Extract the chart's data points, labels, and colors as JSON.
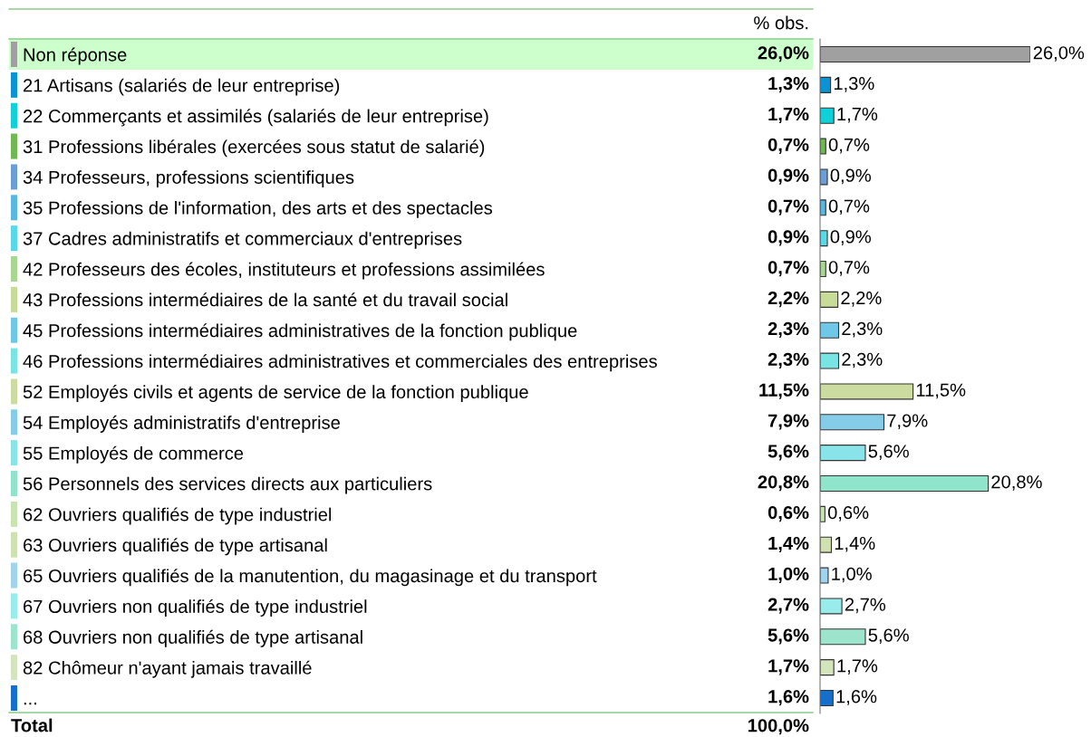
{
  "chart_data": {
    "type": "bar",
    "orientation": "horizontal",
    "data_labels": true,
    "categories": [
      "Non réponse",
      "21 Artisans (salariés de leur entreprise)",
      "22 Commerçants et assimilés (salariés de leur entreprise)",
      "31 Professions libérales (exercées sous statut de salarié)",
      "34 Professeurs, professions scientifiques",
      "35 Professions de l'information, des arts et des spectacles",
      "37 Cadres administratifs et commerciaux d'entreprises",
      "42 Professeurs des écoles, instituteurs et professions assimilées",
      "43 Professions intermédiaires de la santé et du travail social",
      "45 Professions intermédiaires administratives de la fonction publique",
      "46 Professions intermédiaires administratives et commerciales des entreprises",
      "52 Employés civils et agents de service de la fonction publique",
      "54 Employés administratifs d'entreprise",
      "55 Employés de commerce",
      "56 Personnels des services directs aux particuliers",
      "62 Ouvriers qualifiés de type industriel",
      "63 Ouvriers qualifiés de type artisanal",
      "65 Ouvriers qualifiés de la manutention, du magasinage et du transport",
      "67 Ouvriers non qualifiés de type industriel",
      "68 Ouvriers non qualifiés de type artisanal",
      "82 Chômeur n'ayant jamais travaillé",
      "..."
    ],
    "values": [
      26.0,
      1.3,
      1.7,
      0.7,
      0.9,
      0.7,
      0.9,
      0.7,
      2.2,
      2.3,
      2.3,
      11.5,
      7.9,
      5.6,
      20.8,
      0.6,
      1.4,
      1.0,
      2.7,
      5.6,
      1.7,
      1.6
    ],
    "value_labels": [
      "26,0%",
      "1,3%",
      "1,7%",
      "0,7%",
      "0,9%",
      "0,7%",
      "0,9%",
      "0,7%",
      "2,2%",
      "2,3%",
      "2,3%",
      "11,5%",
      "7,9%",
      "5,6%",
      "20,8%",
      "0,6%",
      "1,4%",
      "1,0%",
      "2,7%",
      "5,6%",
      "1,7%",
      "1,6%"
    ],
    "colors": [
      "#a0a0a0",
      "#0a94d6",
      "#10d0d8",
      "#70b850",
      "#6a9ed6",
      "#58b8e0",
      "#58d8e8",
      "#a8d890",
      "#c8dc98",
      "#70c8e8",
      "#78e4e4",
      "#ccdca0",
      "#84cce8",
      "#88e4e8",
      "#90e4cc",
      "#c8e4b0",
      "#d0e0b0",
      "#a0d4ec",
      "#98ecec",
      "#9ce4cc",
      "#d4e4bc",
      "#1470cc"
    ],
    "annotations": [
      "% obs.",
      "Total",
      "100,0%"
    ]
  }
}
